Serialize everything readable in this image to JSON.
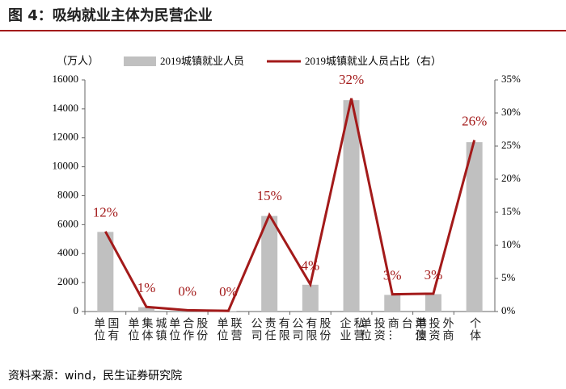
{
  "title": "图 4：吸纳就业主体为民营企业",
  "source": "资料来源：wind，民生证券研究院",
  "chart_data": {
    "type": "bar-line",
    "y_label": "（万人）",
    "categories": [
      "国有单位",
      "城镇集体单位",
      "股份合作单位",
      "联营单位",
      "有限责任公司",
      "股份有限公司",
      "私营企业",
      "港澳台商…投资单位",
      "外商投资单位",
      "个体"
    ],
    "series": [
      {
        "name": "2019城镇就业人员",
        "type": "bar",
        "color": "#c0c0c0",
        "values": [
          5500,
          300,
          80,
          30,
          6600,
          1850,
          14600,
          1150,
          1200,
          11700
        ]
      },
      {
        "name": "2019城镇就业人员占比（右）",
        "type": "line",
        "axis": "y2",
        "color": "#a31a1a",
        "values": [
          12.1,
          0.7,
          0.2,
          0.1,
          14.6,
          4.1,
          32.2,
          2.6,
          2.7,
          25.9
        ],
        "value_labels": [
          "12%",
          "1%",
          "0%",
          "0%",
          "15%",
          "4%",
          "32%",
          "3%",
          "3%",
          "26%"
        ]
      }
    ],
    "ylim": [
      0,
      16000
    ],
    "yticks": [
      0,
      2000,
      4000,
      6000,
      8000,
      10000,
      12000,
      14000,
      16000
    ],
    "y2lim": [
      0,
      35
    ],
    "y2ticks": [
      {
        "value": 0,
        "label": "0%"
      },
      {
        "value": 5,
        "label": "5%"
      },
      {
        "value": 10,
        "label": "10%"
      },
      {
        "value": 15,
        "label": "15%"
      },
      {
        "value": 20,
        "label": "20%"
      },
      {
        "value": 25,
        "label": "25%"
      },
      {
        "value": 30,
        "label": "30%"
      },
      {
        "value": 35,
        "label": "35%"
      }
    ]
  }
}
